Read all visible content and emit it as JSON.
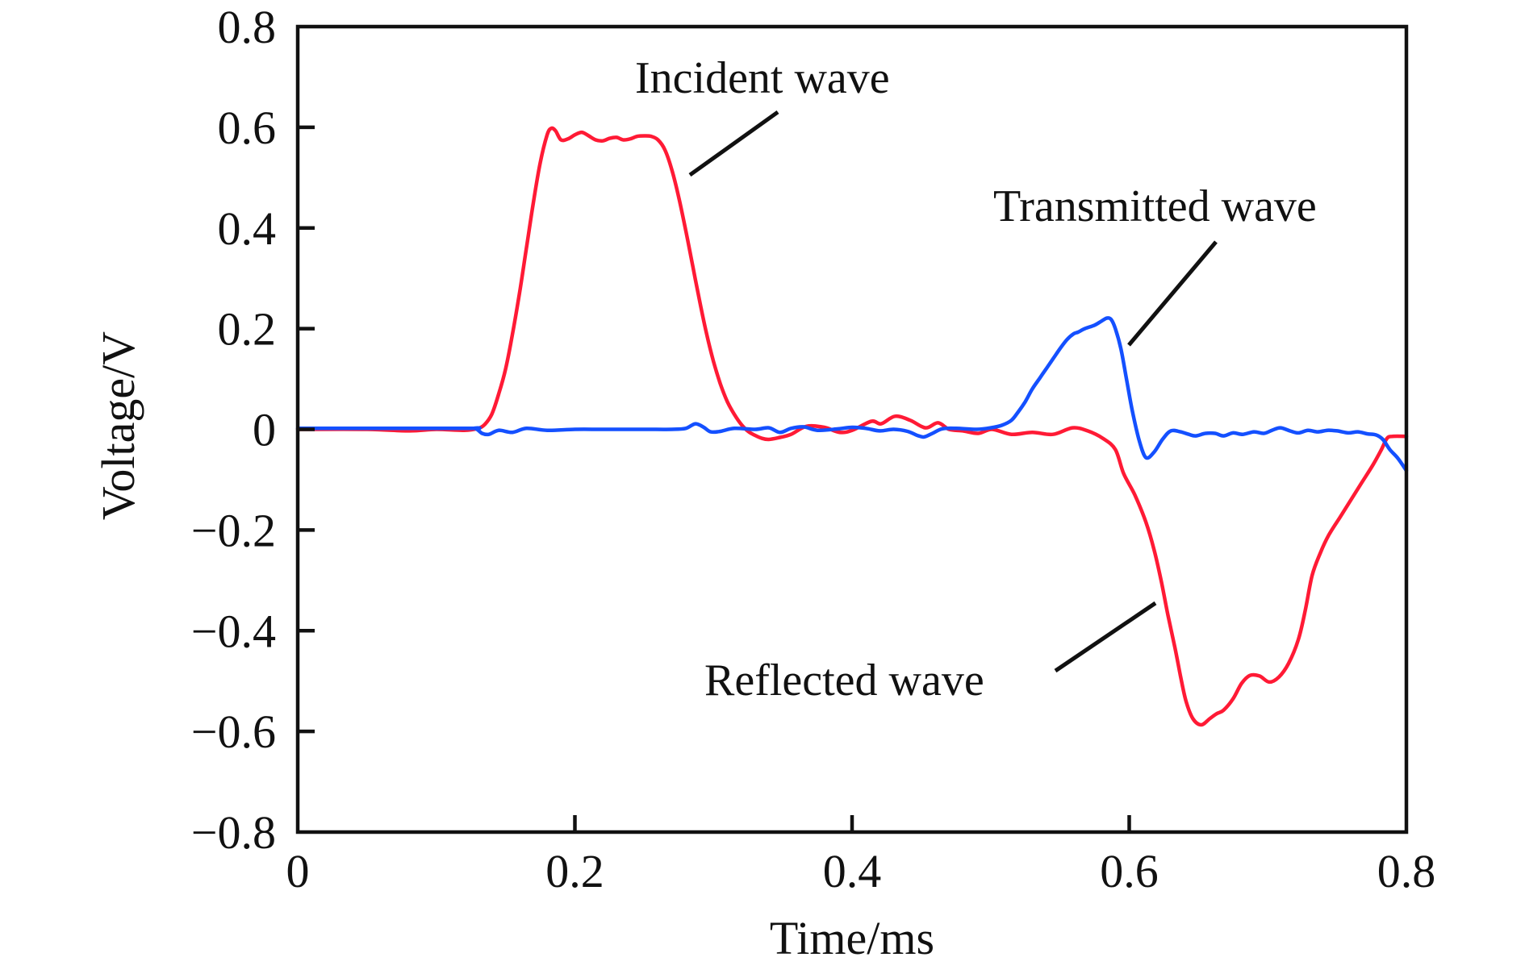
{
  "chart_data": {
    "type": "line",
    "title": "",
    "xlabel": "Time/ms",
    "ylabel": "Voltage/V",
    "xlim": [
      0,
      0.8
    ],
    "ylim": [
      -0.8,
      0.8
    ],
    "xticks": [
      0,
      0.2,
      0.4,
      0.6,
      0.8
    ],
    "xtick_labels": [
      "0",
      "0.2",
      "0.4",
      "0.6",
      "0.8"
    ],
    "yticks": [
      0.8,
      0.6,
      0.4,
      0.2,
      0,
      -0.2,
      -0.4,
      -0.6,
      -0.8
    ],
    "ytick_labels": [
      "0.8",
      "0.6",
      "0.4",
      "0.2",
      "0",
      "−0.2",
      "−0.4",
      "−0.6",
      "−0.8"
    ],
    "grid": false,
    "legend": "none (inline annotations)",
    "series": [
      {
        "name": "Incident wave",
        "color": "#ff1a35",
        "x": [
          0,
          0.05,
          0.08,
          0.1,
          0.12,
          0.13,
          0.135,
          0.14,
          0.145,
          0.15,
          0.155,
          0.16,
          0.165,
          0.17,
          0.175,
          0.18,
          0.183,
          0.186,
          0.19,
          0.195,
          0.2,
          0.205,
          0.21,
          0.215,
          0.22,
          0.225,
          0.23,
          0.235,
          0.24,
          0.245,
          0.25,
          0.255,
          0.26,
          0.265,
          0.27,
          0.275,
          0.28,
          0.285,
          0.29,
          0.295,
          0.3,
          0.305,
          0.31,
          0.315,
          0.32,
          0.325,
          0.33,
          0.335,
          0.34,
          0.348,
          0.356,
          0.367,
          0.38,
          0.391,
          0.4,
          0.414,
          0.421,
          0.431,
          0.442,
          0.453,
          0.462,
          0.47,
          0.48,
          0.491,
          0.501,
          0.515,
          0.53,
          0.545,
          0.559,
          0.57,
          0.581,
          0.59,
          0.596,
          0.604,
          0.612,
          0.618,
          0.623,
          0.628,
          0.633,
          0.637,
          0.641,
          0.646,
          0.652,
          0.658,
          0.663,
          0.668,
          0.675,
          0.681,
          0.687,
          0.694,
          0.701,
          0.708,
          0.715,
          0.722,
          0.727,
          0.732,
          0.738,
          0.744,
          0.752,
          0.76,
          0.768,
          0.776,
          0.782,
          0.786,
          0.79,
          0.8
        ],
        "y": [
          0,
          0,
          -0.003,
          0,
          -0.002,
          0.002,
          0.01,
          0.03,
          0.07,
          0.12,
          0.19,
          0.27,
          0.36,
          0.45,
          0.53,
          0.585,
          0.598,
          0.593,
          0.575,
          0.577,
          0.585,
          0.59,
          0.583,
          0.575,
          0.573,
          0.578,
          0.58,
          0.575,
          0.577,
          0.582,
          0.583,
          0.582,
          0.575,
          0.555,
          0.515,
          0.46,
          0.395,
          0.325,
          0.255,
          0.19,
          0.135,
          0.09,
          0.055,
          0.03,
          0.01,
          -0.004,
          -0.012,
          -0.018,
          -0.02,
          -0.016,
          -0.01,
          0.006,
          0.004,
          -0.006,
          -0.002,
          0.016,
          0.011,
          0.026,
          0.018,
          0.003,
          0.013,
          0,
          -0.003,
          -0.008,
          0,
          -0.01,
          -0.006,
          -0.01,
          0.003,
          -0.003,
          -0.018,
          -0.04,
          -0.088,
          -0.13,
          -0.184,
          -0.24,
          -0.3,
          -0.37,
          -0.434,
          -0.49,
          -0.54,
          -0.575,
          -0.587,
          -0.575,
          -0.565,
          -0.558,
          -0.535,
          -0.505,
          -0.489,
          -0.49,
          -0.502,
          -0.492,
          -0.465,
          -0.418,
          -0.36,
          -0.29,
          -0.245,
          -0.21,
          -0.175,
          -0.14,
          -0.105,
          -0.07,
          -0.04,
          -0.018,
          -0.014,
          -0.014
        ]
      },
      {
        "name": "Transmitted wave",
        "color": "#1450ff",
        "x": [
          0,
          0.12,
          0.128,
          0.133,
          0.138,
          0.145,
          0.155,
          0.165,
          0.18,
          0.2,
          0.22,
          0.25,
          0.27,
          0.28,
          0.287,
          0.293,
          0.298,
          0.305,
          0.315,
          0.33,
          0.34,
          0.348,
          0.356,
          0.365,
          0.375,
          0.39,
          0.4,
          0.41,
          0.42,
          0.43,
          0.44,
          0.447,
          0.452,
          0.458,
          0.465,
          0.475,
          0.49,
          0.5,
          0.508,
          0.515,
          0.52,
          0.525,
          0.53,
          0.535,
          0.54,
          0.545,
          0.55,
          0.555,
          0.56,
          0.563,
          0.568,
          0.575,
          0.58,
          0.584,
          0.587,
          0.59,
          0.594,
          0.598,
          0.602,
          0.607,
          0.612,
          0.618,
          0.624,
          0.63,
          0.637,
          0.643,
          0.648,
          0.655,
          0.662,
          0.668,
          0.675,
          0.682,
          0.69,
          0.697,
          0.703,
          0.709,
          0.716,
          0.722,
          0.729,
          0.736,
          0.743,
          0.75,
          0.758,
          0.765,
          0.772,
          0.778,
          0.783,
          0.788,
          0.794,
          0.8
        ],
        "y": [
          0.002,
          0.002,
          0.002,
          -0.008,
          -0.01,
          -0.002,
          -0.006,
          0.002,
          -0.002,
          0,
          0,
          0,
          0,
          0.002,
          0.011,
          0.004,
          -0.005,
          -0.004,
          0.002,
          0,
          0.003,
          -0.006,
          0.002,
          0.005,
          -0.002,
          0.001,
          0.004,
          0.002,
          -0.003,
          0,
          -0.004,
          -0.012,
          -0.015,
          -0.008,
          0.001,
          0.002,
          0,
          0.003,
          0.008,
          0.018,
          0.035,
          0.055,
          0.08,
          0.1,
          0.12,
          0.14,
          0.16,
          0.178,
          0.19,
          0.193,
          0.2,
          0.207,
          0.215,
          0.221,
          0.218,
          0.2,
          0.16,
          0.1,
          0.04,
          -0.02,
          -0.056,
          -0.045,
          -0.02,
          -0.003,
          -0.005,
          -0.01,
          -0.013,
          -0.008,
          -0.008,
          -0.013,
          -0.007,
          -0.01,
          -0.005,
          -0.008,
          -0.002,
          0.003,
          -0.003,
          -0.007,
          -0.002,
          -0.005,
          -0.002,
          -0.003,
          -0.007,
          -0.005,
          -0.009,
          -0.011,
          -0.02,
          -0.04,
          -0.058,
          -0.082
        ]
      }
    ],
    "annotations": [
      {
        "text": "Incident wave",
        "series": "Incident wave"
      },
      {
        "text": "Transmitted wave",
        "series": "Transmitted wave"
      },
      {
        "text": "Reflected wave",
        "series": "Incident wave"
      }
    ]
  }
}
